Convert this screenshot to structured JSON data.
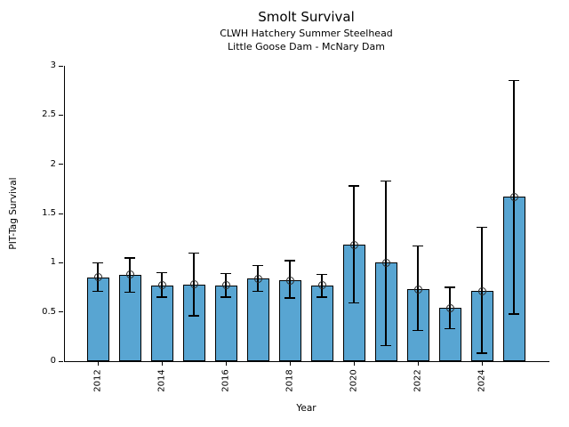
{
  "chart_data": {
    "type": "bar",
    "title": "Smolt Survival",
    "subtitle_lines": [
      "CLWH Hatchery Summer Steelhead",
      "Little Goose Dam - McNary Dam"
    ],
    "xlabel": "Year",
    "ylabel": "PIT-Tag Survival",
    "ylim": [
      0,
      3
    ],
    "ytick_values": [
      0,
      0.5,
      1,
      1.5,
      2,
      2.5,
      3
    ],
    "ytick_labels": [
      "0",
      "0.5",
      "1",
      "1.5",
      "2",
      "2.5",
      "3"
    ],
    "xtick_years": [
      2012,
      2014,
      2016,
      2018,
      2020,
      2022,
      2024
    ],
    "grid": false,
    "legend": null,
    "series": [
      {
        "name": "PIT-Tag Survival",
        "years": [
          2012,
          2013,
          2014,
          2015,
          2016,
          2017,
          2018,
          2019,
          2020,
          2021,
          2022,
          2023,
          2024,
          2025
        ],
        "values": [
          0.85,
          0.88,
          0.77,
          0.78,
          0.77,
          0.84,
          0.82,
          0.77,
          1.18,
          1.0,
          0.73,
          0.54,
          0.71,
          1.67
        ],
        "error_low": [
          0.71,
          0.7,
          0.65,
          0.46,
          0.65,
          0.71,
          0.64,
          0.65,
          0.59,
          0.16,
          0.31,
          0.33,
          0.08,
          0.48
        ],
        "error_high": [
          1.0,
          1.05,
          0.9,
          1.1,
          0.89,
          0.97,
          1.02,
          0.88,
          1.78,
          1.83,
          1.17,
          0.75,
          1.36,
          2.85
        ]
      }
    ],
    "colors": {
      "bar_fill": "#58A5D2",
      "bar_edge": "#000000",
      "error_bar": "#000000",
      "marker_edge": "#2a2a2a",
      "background": "#ffffff"
    }
  }
}
